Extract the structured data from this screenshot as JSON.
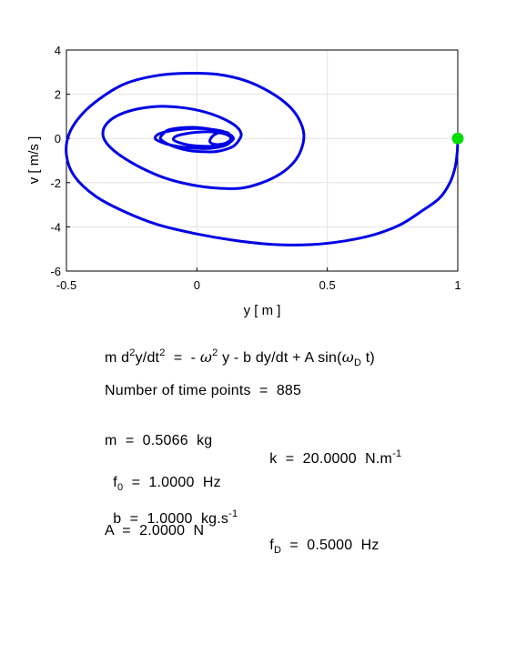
{
  "chart_data": {
    "type": "line",
    "title": "",
    "xlabel": "y  [ m ]",
    "ylabel": "v  [ m/s ]",
    "xlim": [
      -0.5,
      1.0
    ],
    "ylim": [
      -6,
      4
    ],
    "xticks": [
      -0.5,
      0,
      0.5,
      1
    ],
    "yticks": [
      -6,
      -4,
      -2,
      0,
      2,
      4
    ],
    "xtick_labels": [
      "-0.5",
      "0",
      "0.5",
      "1"
    ],
    "ytick_labels": [
      "-6",
      "-4",
      "-2",
      "0",
      "2",
      "4"
    ],
    "grid": true,
    "series": [
      {
        "name": "",
        "color": "#0000e6",
        "x": [
          1.0,
          0.998,
          0.99,
          0.97,
          0.93,
          0.86,
          0.78,
          0.68,
          0.56,
          0.44,
          0.3,
          0.15,
          0.0,
          -0.15,
          -0.28,
          -0.39,
          -0.47,
          -0.5,
          -0.49,
          -0.44,
          -0.36,
          -0.27,
          -0.15,
          -0.03,
          0.08,
          0.19,
          0.28,
          0.35,
          0.39,
          0.41,
          0.4,
          0.37,
          0.32,
          0.25,
          0.17,
          0.08,
          -0.02,
          -0.12,
          -0.21,
          -0.29,
          -0.34,
          -0.36,
          -0.35,
          -0.31,
          -0.24,
          -0.15,
          -0.06,
          0.03,
          0.1,
          0.15,
          0.17,
          0.16,
          0.14,
          0.11,
          0.07,
          0.02,
          -0.03,
          -0.08,
          -0.12,
          -0.14,
          -0.13,
          -0.11,
          -0.06,
          -0.01,
          0.05,
          0.1,
          0.13,
          0.13,
          0.12,
          0.09,
          0.05,
          0.0,
          -0.05,
          -0.1,
          -0.14,
          -0.16,
          -0.15,
          -0.12,
          -0.07,
          -0.01,
          0.05,
          0.1,
          0.13,
          0.14,
          0.13,
          0.11,
          0.07,
          0.02,
          -0.03,
          -0.07,
          -0.09,
          -0.08,
          -0.05,
          0.0,
          0.05,
          0.09,
          0.12,
          0.13,
          0.12,
          0.1,
          0.07,
          0.05,
          0.06,
          0.09,
          0.12,
          0.13
        ],
        "y": [
          0.0,
          -0.6,
          -1.3,
          -2.0,
          -2.7,
          -3.3,
          -3.9,
          -4.35,
          -4.65,
          -4.8,
          -4.8,
          -4.62,
          -4.32,
          -3.9,
          -3.3,
          -2.6,
          -1.7,
          -0.75,
          0.2,
          1.1,
          1.9,
          2.5,
          2.85,
          2.95,
          2.9,
          2.6,
          2.1,
          1.5,
          0.9,
          0.2,
          -0.5,
          -1.1,
          -1.6,
          -2.0,
          -2.25,
          -2.25,
          -2.1,
          -1.8,
          -1.35,
          -0.8,
          -0.3,
          0.15,
          0.6,
          1.0,
          1.3,
          1.45,
          1.4,
          1.2,
          0.9,
          0.55,
          0.2,
          -0.1,
          -0.35,
          -0.5,
          -0.6,
          -0.6,
          -0.55,
          -0.4,
          -0.2,
          0.0,
          0.2,
          0.38,
          0.48,
          0.5,
          0.42,
          0.25,
          0.05,
          -0.1,
          -0.25,
          -0.38,
          -0.45,
          -0.45,
          -0.4,
          -0.3,
          -0.15,
          0.0,
          0.18,
          0.3,
          0.4,
          0.45,
          0.42,
          0.32,
          0.15,
          0.0,
          -0.15,
          -0.28,
          -0.35,
          -0.35,
          -0.3,
          -0.18,
          -0.05,
          0.1,
          0.2,
          0.28,
          0.3,
          0.25,
          0.15,
          0.0,
          -0.15,
          -0.25,
          -0.27,
          -0.15,
          0.1,
          0.28,
          0.25,
          0.0
        ]
      }
    ],
    "start_marker": {
      "x": 1.0,
      "y": 0.0,
      "color": "#00dd00"
    }
  },
  "equation": {
    "p1": "m d",
    "sup1": "2",
    "p2": "y/dt",
    "sup2": "2",
    "p3": "  =  - ",
    "omega": "ω",
    "sup3": "2",
    "p4": " y - b dy/dt + A sin(",
    "omega2": "ω",
    "sub_d": "D",
    "p5": " t)"
  },
  "params": {
    "time_points": "Number of time points  =  885",
    "m": "m  =  0.5066  kg",
    "k": "k  =  20.0000  N.m",
    "k_sup": "-1",
    "f0_base": "f",
    "f0_sub": "0",
    "f0_value": "  =  1.0000  Hz",
    "b": "b  =  1.0000  kg.s",
    "b_sup": "-1",
    "A": "A  =  2.0000  N",
    "fD_base": "f",
    "fD_sub": "D",
    "fD_value": "  =  0.5000  Hz"
  }
}
